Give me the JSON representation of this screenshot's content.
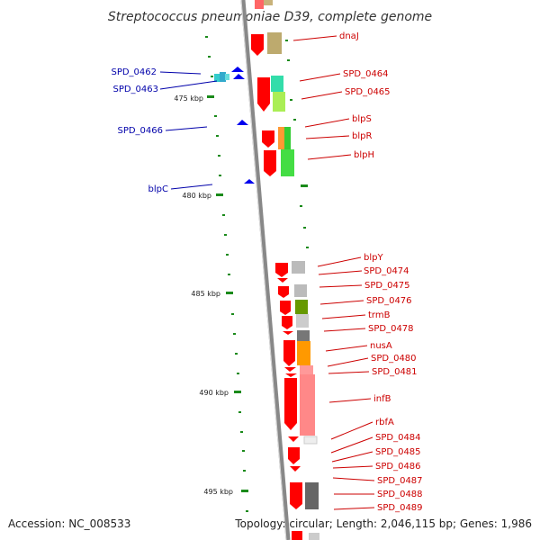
{
  "title": "Streptococcus pneumoniae D39, complete genome",
  "accession": "Accession: NC_008533",
  "topology": "Topology: circular; Length: 2,046,115 bp; Genes: 1,986",
  "ticks": [
    "475 kbp",
    "480 kbp",
    "485 kbp",
    "490 kbp",
    "495 kbp"
  ],
  "labels_right": [
    "dnaJ",
    "SPD_0464",
    "SPD_0465",
    "blpS",
    "blpR",
    "blpH",
    "blpY",
    "SPD_0474",
    "SPD_0475",
    "SPD_0476",
    "trmB",
    "SPD_0478",
    "nusA",
    "SPD_0480",
    "SPD_0481",
    "infB",
    "rbfA",
    "SPD_0484",
    "SPD_0485",
    "SPD_0486",
    "SPD_0487",
    "SPD_0488",
    "SPD_0489"
  ],
  "labels_left": [
    "SPD_0462",
    "SPD_0463",
    "SPD_0466",
    "blpC"
  ],
  "colors": {
    "forward_gene": "#ff0000",
    "reverse_gene": "#0000ee",
    "label_forward": "#cc0000",
    "label_reverse": "#0000aa",
    "backbone": "#999999",
    "tick": "#1a8a1a"
  }
}
